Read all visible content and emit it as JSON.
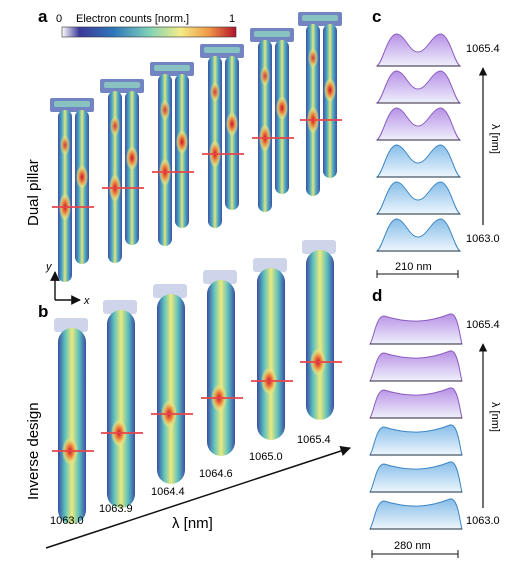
{
  "panels": {
    "a": "a",
    "b": "b",
    "c": "c",
    "d": "d"
  },
  "colorbar": {
    "min_label": "0",
    "max_label": "1",
    "title": "Electron counts [norm.]"
  },
  "side_labels": {
    "dual": "Dual pillar",
    "inverse": "Inverse design"
  },
  "axes": {
    "y": "y",
    "x": "x",
    "lambda_label": "λ [nm]",
    "lambda_axis_c": "λ [nm]",
    "lambda_axis_d": "λ [nm]"
  },
  "panel_b_wavelengths": [
    "1063.0",
    "1063.9",
    "1064.4",
    "1064.6",
    "1065.0",
    "1065.4"
  ],
  "panel_c": {
    "top_label": "1065.4",
    "bottom_label": "1063.0",
    "scale_bar": "210 nm"
  },
  "panel_d": {
    "top_label": "1065.4",
    "bottom_label": "1063.0",
    "scale_bar": "280 nm"
  },
  "colors": {
    "colormap": [
      "#2b2d8c",
      "#2f6fb7",
      "#3fb0c4",
      "#a6d96a",
      "#f6e87a",
      "#f4a14a",
      "#d7301f",
      "#a50026"
    ],
    "marker": "#e8454a",
    "profile_top": "#a56ad6",
    "profile_bottom": "#4a9ad6"
  }
}
